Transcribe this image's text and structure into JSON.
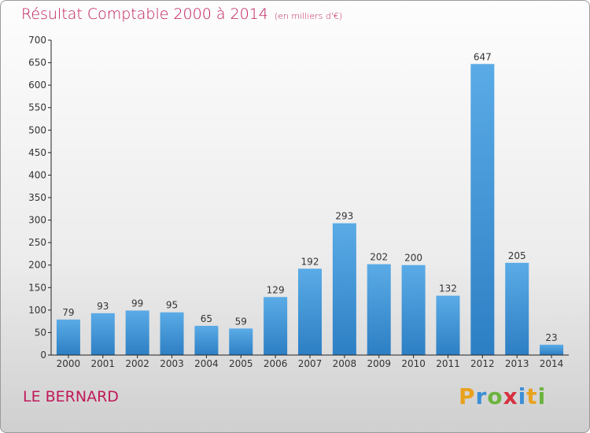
{
  "header": {
    "title": "Résultat Comptable 2000 à 2014",
    "unit": "(en milliers d'€)"
  },
  "footer": {
    "commune": "LE BERNARD",
    "logo": "Proxiti"
  },
  "colors": {
    "title": "#c0195a",
    "bar_top": "#5aabe6",
    "bar_bottom": "#2d7fc4",
    "axis": "#222222",
    "logo_p": "#e8a21e",
    "logo_r": "#3b8fd6",
    "logo_o": "#6cb33f",
    "logo_x": "#d6303f",
    "logo_i": "#3b8fd6",
    "logo_t": "#e8a21e",
    "logo_i2": "#6cb33f"
  },
  "chart_data": {
    "type": "bar",
    "title": "Résultat Comptable 2000 à 2014",
    "categories": [
      "2000",
      "2001",
      "2002",
      "2003",
      "2004",
      "2005",
      "2006",
      "2007",
      "2008",
      "2009",
      "2010",
      "2011",
      "2012",
      "2013",
      "2014"
    ],
    "values": [
      79,
      93,
      99,
      95,
      65,
      59,
      129,
      192,
      293,
      202,
      200,
      132,
      647,
      205,
      23
    ],
    "ylim": [
      0,
      700
    ],
    "yticks": [
      0,
      50,
      100,
      150,
      200,
      250,
      300,
      350,
      400,
      450,
      500,
      550,
      600,
      650,
      700
    ],
    "grid": false,
    "data_labels": true
  }
}
